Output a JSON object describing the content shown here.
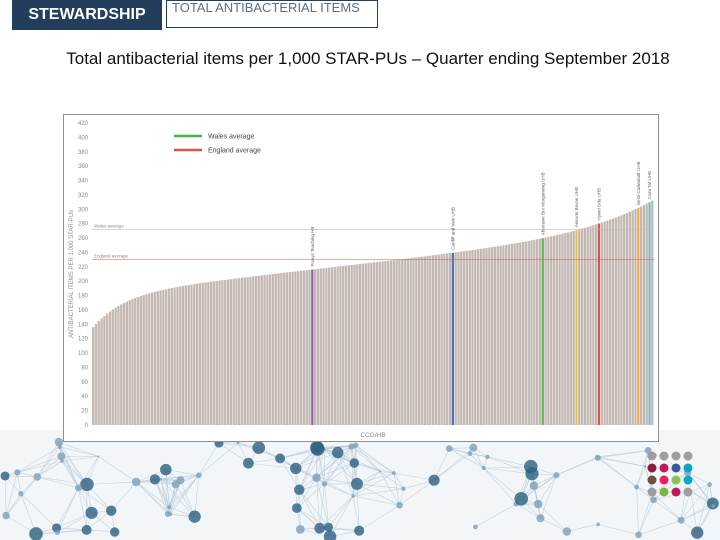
{
  "header": {
    "section_label": "STEWARDSHIP",
    "topic_label": "TOTAL ANTIBACTERIAL ITEMS"
  },
  "slide": {
    "title": "Total antibacterial items per 1,000 STAR-PUs – Quarter ending September 2018"
  },
  "colors": {
    "header_bg": "#223e5c",
    "bar_default": "#c3b8b2",
    "wales_average": "#4caf50",
    "england_average": "#d9534f",
    "highlight_green": "#5cb85c",
    "highlight_blue": "#4a74b8",
    "highlight_orange": "#f0ad4e",
    "highlight_purple": "#9b59b6",
    "highlight_yellow": "#e6c54a",
    "highlight_red": "#d9534f",
    "highlight_teal": "#7fb8c8"
  },
  "chart_data": {
    "type": "bar",
    "title": "",
    "xlabel": "CCG/HB",
    "ylabel": "ANTIBACTERIAL ITEMS PER 1,000 STAR-PUs",
    "ylim": [
      0,
      420
    ],
    "yticks": [
      0,
      20,
      40,
      60,
      80,
      100,
      120,
      140,
      160,
      180,
      200,
      220,
      240,
      260,
      280,
      300,
      320,
      340,
      360,
      380,
      400,
      420
    ],
    "bar_count": 200,
    "value_start": 136,
    "value_end": 312,
    "wales_average": 272,
    "england_average": 230,
    "legend": {
      "position": "top-left",
      "items": [
        {
          "label": "Wales average",
          "color": "#4caf50"
        },
        {
          "label": "England average",
          "color": "#d9534f"
        }
      ]
    },
    "reference_labels": {
      "wales": "Wales average",
      "england": "England average"
    },
    "highlights": [
      {
        "index": 78,
        "label": "Powys Teaching HB",
        "color": "#9b59b6"
      },
      {
        "index": 128,
        "label": "Cardiff and Vale UHB",
        "color": "#4a74b8"
      },
      {
        "index": 160,
        "label": "Abertawe Bro Morgannwg UHB",
        "color": "#5cb85c"
      },
      {
        "index": 172,
        "label": "Aneurin Bevan UHB",
        "color": "#e6c54a"
      },
      {
        "index": 180,
        "label": "Hywel Dda UHB",
        "color": "#d9534f"
      },
      {
        "index": 194,
        "label": "Betsi Cadwaladr UHB",
        "color": "#f0ad4e"
      },
      {
        "index": 198,
        "label": "Cwm Taf UHB",
        "color": "#7fb8c8"
      }
    ]
  }
}
